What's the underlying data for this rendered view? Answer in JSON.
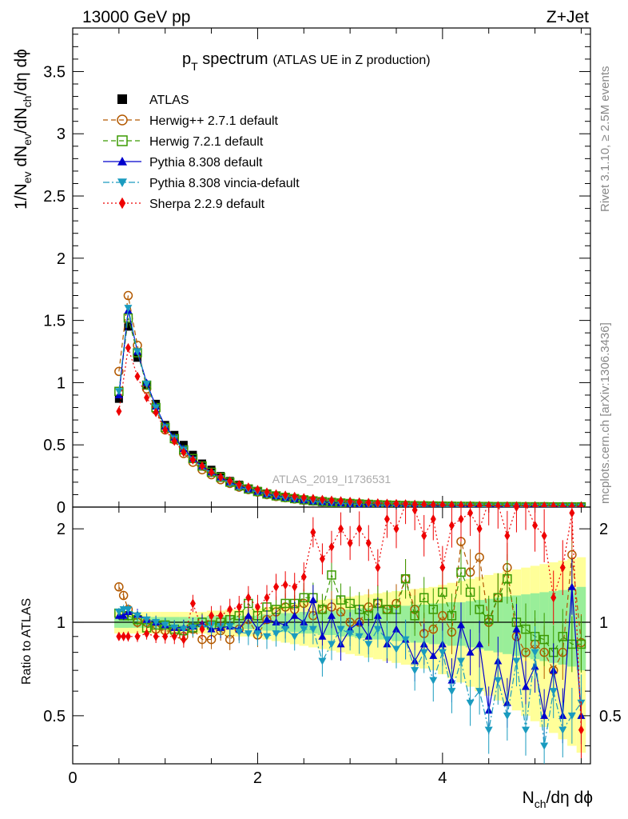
{
  "header": {
    "left": "13000 GeV pp",
    "right": "Z+Jet"
  },
  "title": {
    "main": "p",
    "sub": "T",
    "rest": " spectrum",
    "paren": "(ATLAS UE in Z production)"
  },
  "side_text": {
    "rivet": "Rivet 3.1.10, ≥ 2.5M events",
    "mcplots": "mcplots.cern.ch [arXiv:1306.3436]"
  },
  "watermark": "ATLAS_2019_I1736531",
  "axes": {
    "ylabel_main": "1/N",
    "ylabel_main_parts": [
      "1/N",
      "ev",
      " dN",
      "ev",
      "/dN",
      "ch",
      "/dη dϕ"
    ],
    "ylabel_ratio": "Ratio to ATLAS",
    "xlabel_parts": [
      "N",
      "ch",
      "/dη dϕ"
    ],
    "x_ticks": [
      "0",
      "2",
      "4"
    ],
    "y_ticks_main": [
      "0",
      "0.5",
      "1",
      "1.5",
      "2",
      "2.5",
      "3",
      "3.5"
    ],
    "y_ticks_ratio": [
      "0.5",
      "1",
      "2"
    ]
  },
  "legend": [
    {
      "name": "ATLAS",
      "color": "#000000",
      "marker": "square-filled",
      "line": "none"
    },
    {
      "name": "Herwig++ 2.7.1 default",
      "color": "#b35900",
      "marker": "circle-open",
      "line": "dashed"
    },
    {
      "name": "Herwig 7.2.1 default",
      "color": "#3a9a00",
      "marker": "square-open",
      "line": "dashed"
    },
    {
      "name": "Pythia 8.308 default",
      "color": "#0000cc",
      "marker": "triangle-up",
      "line": "solid"
    },
    {
      "name": "Pythia 8.308 vincia-default",
      "color": "#1a9bbf",
      "marker": "triangle-down",
      "line": "dashdot"
    },
    {
      "name": "Sherpa 2.2.9 default",
      "color": "#ee0000",
      "marker": "diamond",
      "line": "dotted"
    }
  ],
  "chart_data": [
    {
      "type": "line",
      "panel": "main",
      "xlim": [
        0,
        5.6
      ],
      "ylim": [
        0,
        3.85
      ],
      "x": [
        0.5,
        0.6,
        0.7,
        0.8,
        0.9,
        1.0,
        1.1,
        1.2,
        1.3,
        1.4,
        1.5,
        1.6,
        1.7,
        1.8,
        1.9,
        2.0,
        2.1,
        2.2,
        2.3,
        2.4,
        2.5,
        2.6,
        2.7,
        2.8,
        2.9,
        3.0,
        3.1,
        3.2,
        3.3,
        3.4,
        3.5,
        3.6,
        3.7,
        3.8,
        3.9,
        4.0,
        4.1,
        4.2,
        4.3,
        4.4,
        4.5,
        4.6,
        4.7,
        4.8,
        4.9,
        5.0,
        5.1,
        5.2,
        5.3,
        5.4,
        5.5
      ],
      "series": [
        {
          "name": "ATLAS",
          "values": [
            0.87,
            1.45,
            1.2,
            0.98,
            0.83,
            0.66,
            0.58,
            0.5,
            0.42,
            0.35,
            0.3,
            0.25,
            0.21,
            0.18,
            0.15,
            0.13,
            0.11,
            0.09,
            0.08,
            0.07,
            0.06,
            0.05,
            0.045,
            0.04,
            0.035,
            0.03,
            0.026,
            0.023,
            0.02,
            0.018,
            0.016,
            0.014,
            0.012,
            0.011,
            0.01,
            0.009,
            0.008,
            0.007,
            0.006,
            0.006,
            0.005,
            0.005,
            0.004,
            0.004,
            0.004,
            0.003,
            0.003,
            0.003,
            0.003,
            0.002,
            0.002
          ]
        },
        {
          "name": "Herwig++ 2.7.1 default",
          "values": [
            1.09,
            1.7,
            1.3,
            0.95,
            0.78,
            0.62,
            0.54,
            0.43,
            0.36,
            0.3,
            0.26,
            0.22,
            0.19,
            0.16,
            0.14,
            0.12,
            0.1,
            0.085,
            0.075,
            0.065,
            0.055,
            0.048,
            0.042,
            0.036,
            0.032,
            0.028,
            0.024,
            0.021,
            0.018,
            0.016,
            0.014,
            0.012,
            0.011,
            0.01,
            0.009,
            0.008,
            0.007,
            0.006,
            0.005,
            0.005,
            0.004,
            0.004,
            0.004,
            0.003,
            0.003,
            0.003,
            0.002,
            0.002,
            0.002,
            0.002,
            0.002
          ]
        },
        {
          "name": "Herwig 7.2.1 default",
          "values": [
            0.93,
            1.52,
            1.24,
            0.98,
            0.8,
            0.64,
            0.55,
            0.46,
            0.39,
            0.33,
            0.28,
            0.24,
            0.2,
            0.17,
            0.145,
            0.125,
            0.105,
            0.09,
            0.078,
            0.068,
            0.058,
            0.05,
            0.044,
            0.038,
            0.033,
            0.029,
            0.025,
            0.022,
            0.019,
            0.017,
            0.015,
            0.013,
            0.011,
            0.01,
            0.009,
            0.008,
            0.007,
            0.006,
            0.006,
            0.005,
            0.005,
            0.004,
            0.004,
            0.004,
            0.003,
            0.003,
            0.003,
            0.002,
            0.002,
            0.002,
            0.002
          ]
        },
        {
          "name": "Pythia 8.308 default",
          "values": [
            0.9,
            1.58,
            1.25,
            1.0,
            0.81,
            0.65,
            0.56,
            0.47,
            0.39,
            0.33,
            0.28,
            0.24,
            0.2,
            0.17,
            0.145,
            0.125,
            0.105,
            0.09,
            0.077,
            0.066,
            0.056,
            0.048,
            0.042,
            0.036,
            0.031,
            0.027,
            0.023,
            0.02,
            0.017,
            0.015,
            0.013,
            0.011,
            0.01,
            0.009,
            0.008,
            0.007,
            0.006,
            0.005,
            0.005,
            0.004,
            0.004,
            0.003,
            0.003,
            0.003,
            0.003,
            0.002,
            0.002,
            0.002,
            0.002,
            0.002,
            0.002
          ]
        },
        {
          "name": "Pythia 8.308 vincia-default",
          "values": [
            0.93,
            1.6,
            1.25,
            0.99,
            0.8,
            0.64,
            0.55,
            0.46,
            0.38,
            0.32,
            0.27,
            0.23,
            0.19,
            0.16,
            0.14,
            0.12,
            0.1,
            0.085,
            0.072,
            0.062,
            0.053,
            0.045,
            0.039,
            0.034,
            0.029,
            0.025,
            0.022,
            0.019,
            0.016,
            0.014,
            0.012,
            0.01,
            0.009,
            0.008,
            0.007,
            0.006,
            0.005,
            0.005,
            0.004,
            0.004,
            0.003,
            0.003,
            0.003,
            0.003,
            0.002,
            0.002,
            0.002,
            0.002,
            0.002,
            0.002,
            0.002
          ]
        },
        {
          "name": "Sherpa 2.2.9 default",
          "values": [
            0.77,
            1.28,
            1.05,
            0.88,
            0.76,
            0.62,
            0.53,
            0.44,
            0.38,
            0.33,
            0.28,
            0.24,
            0.21,
            0.18,
            0.16,
            0.14,
            0.12,
            0.105,
            0.095,
            0.085,
            0.075,
            0.068,
            0.06,
            0.055,
            0.05,
            0.045,
            0.04,
            0.036,
            0.033,
            0.03,
            0.027,
            0.025,
            0.022,
            0.02,
            0.018,
            0.017,
            0.015,
            0.014,
            0.013,
            0.012,
            0.011,
            0.01,
            0.009,
            0.009,
            0.008,
            0.008,
            0.007,
            0.007,
            0.006,
            0.006,
            0.006
          ]
        }
      ]
    },
    {
      "type": "line",
      "panel": "ratio",
      "ylabel": "Ratio to ATLAS",
      "xlabel": "Nch/dη dϕ",
      "xlim": [
        0,
        5.6
      ],
      "ylim": [
        0.35,
        2.35
      ],
      "reference_line": 1,
      "x": [
        0.5,
        0.55,
        0.6,
        0.7,
        0.8,
        0.9,
        1.0,
        1.1,
        1.2,
        1.3,
        1.4,
        1.5,
        1.6,
        1.7,
        1.8,
        1.9,
        2.0,
        2.1,
        2.2,
        2.3,
        2.4,
        2.5,
        2.6,
        2.7,
        2.8,
        2.9,
        3.0,
        3.1,
        3.2,
        3.3,
        3.4,
        3.5,
        3.6,
        3.7,
        3.8,
        3.9,
        4.0,
        4.1,
        4.2,
        4.3,
        4.4,
        4.5,
        4.6,
        4.7,
        4.8,
        4.9,
        5.0,
        5.1,
        5.2,
        5.3,
        5.4,
        5.5
      ],
      "bands": {
        "green_half_width": [
          0.04,
          0.04,
          0.04,
          0.04,
          0.04,
          0.04,
          0.04,
          0.04,
          0.04,
          0.04,
          0.04,
          0.05,
          0.05,
          0.05,
          0.05,
          0.05,
          0.05,
          0.06,
          0.06,
          0.07,
          0.07,
          0.08,
          0.08,
          0.09,
          0.09,
          0.1,
          0.1,
          0.11,
          0.11,
          0.12,
          0.12,
          0.13,
          0.13,
          0.14,
          0.14,
          0.15,
          0.15,
          0.16,
          0.16,
          0.17,
          0.18,
          0.19,
          0.2,
          0.21,
          0.22,
          0.23,
          0.24,
          0.25,
          0.26,
          0.27,
          0.28,
          0.3
        ],
        "yellow_half_width": [
          0.08,
          0.08,
          0.08,
          0.08,
          0.08,
          0.08,
          0.08,
          0.08,
          0.08,
          0.08,
          0.08,
          0.09,
          0.09,
          0.1,
          0.1,
          0.1,
          0.11,
          0.12,
          0.13,
          0.14,
          0.15,
          0.16,
          0.17,
          0.18,
          0.19,
          0.2,
          0.21,
          0.22,
          0.23,
          0.24,
          0.25,
          0.26,
          0.27,
          0.28,
          0.29,
          0.3,
          0.32,
          0.34,
          0.36,
          0.38,
          0.4,
          0.42,
          0.44,
          0.46,
          0.48,
          0.5,
          0.52,
          0.54,
          0.56,
          0.58,
          0.6,
          0.62
        ]
      },
      "series": [
        {
          "name": "Herwig++ 2.7.1 default",
          "values": [
            1.3,
            1.22,
            1.1,
            1.0,
            1.0,
            0.95,
            0.94,
            0.93,
            0.9,
            0.95,
            0.88,
            0.88,
            0.94,
            0.88,
            0.95,
            1.02,
            0.91,
            1.02,
            1.08,
            1.12,
            1.1,
            1.15,
            1.05,
            1.1,
            1.12,
            1.08,
            1.0,
            1.0,
            1.12,
            1.15,
            1.1,
            1.15,
            1.38,
            1.1,
            0.92,
            0.95,
            1.05,
            0.93,
            1.82,
            1.45,
            1.62,
            1.0,
            1.2,
            1.5,
            0.9,
            0.8,
            0.85,
            0.8,
            0.7,
            0.8,
            1.65,
            0.86
          ]
        },
        {
          "name": "Herwig 7.2.1 default",
          "values": [
            1.07,
            1.05,
            1.05,
            1.02,
            0.96,
            0.98,
            0.98,
            0.95,
            0.94,
            0.96,
            1.0,
            0.98,
            1.0,
            1.02,
            1.05,
            1.15,
            1.05,
            1.12,
            1.1,
            1.15,
            1.15,
            1.2,
            1.2,
            1.1,
            1.42,
            1.18,
            1.15,
            1.1,
            1.05,
            1.15,
            1.1,
            1.1,
            1.38,
            1.05,
            1.2,
            1.1,
            1.25,
            1.05,
            1.45,
            1.25,
            1.1,
            1.02,
            1.2,
            1.38,
            1.0,
            0.95,
            0.9,
            0.88,
            0.8,
            0.9,
            0.85,
            0.85
          ]
        },
        {
          "name": "Pythia 8.308 default",
          "values": [
            1.05,
            1.05,
            1.08,
            1.06,
            1.02,
            1.0,
            0.98,
            0.96,
            0.96,
            0.97,
            0.99,
            0.95,
            0.96,
            0.97,
            0.95,
            1.05,
            0.95,
            1.02,
            1.0,
            0.98,
            1.05,
            1.0,
            1.18,
            0.9,
            1.05,
            0.85,
            0.95,
            1.0,
            0.9,
            1.05,
            0.85,
            0.95,
            0.88,
            0.75,
            0.85,
            0.78,
            0.85,
            0.65,
            0.98,
            0.8,
            0.85,
            0.52,
            0.75,
            0.55,
            0.95,
            0.62,
            0.72,
            0.5,
            0.7,
            0.5,
            1.3,
            0.5
          ]
        },
        {
          "name": "Pythia 8.308 vincia-default",
          "values": [
            1.08,
            1.1,
            1.1,
            1.05,
            1.02,
            1.0,
            0.98,
            0.96,
            0.95,
            0.96,
            0.96,
            0.98,
            0.97,
            0.97,
            0.93,
            0.92,
            0.92,
            0.9,
            0.92,
            0.95,
            0.9,
            0.95,
            0.95,
            0.75,
            0.85,
            0.95,
            0.92,
            0.9,
            0.85,
            0.95,
            0.88,
            0.82,
            0.88,
            0.7,
            0.8,
            0.65,
            0.8,
            0.6,
            0.75,
            0.55,
            0.6,
            0.45,
            0.65,
            0.5,
            0.75,
            0.45,
            0.8,
            0.4,
            0.6,
            0.45,
            0.5,
            0.55
          ]
        },
        {
          "name": "Sherpa 2.2.9 default",
          "values": [
            0.9,
            0.9,
            0.9,
            0.9,
            0.92,
            0.9,
            0.9,
            0.9,
            0.88,
            1.15,
            0.95,
            1.05,
            1.05,
            1.1,
            1.12,
            1.2,
            1.12,
            1.2,
            1.3,
            1.32,
            1.3,
            1.4,
            1.95,
            1.6,
            1.75,
            2.0,
            1.8,
            2.0,
            1.8,
            1.5,
            2.15,
            2.0,
            2.4,
            2.3,
            1.9,
            2.15,
            1.5,
            2.05,
            2.15,
            2.25,
            2.0,
            2.45,
            2.4,
            1.9,
            2.35,
            2.4,
            2.05,
            1.9,
            1.2,
            1.5,
            2.25,
            0.45
          ]
        }
      ]
    }
  ]
}
